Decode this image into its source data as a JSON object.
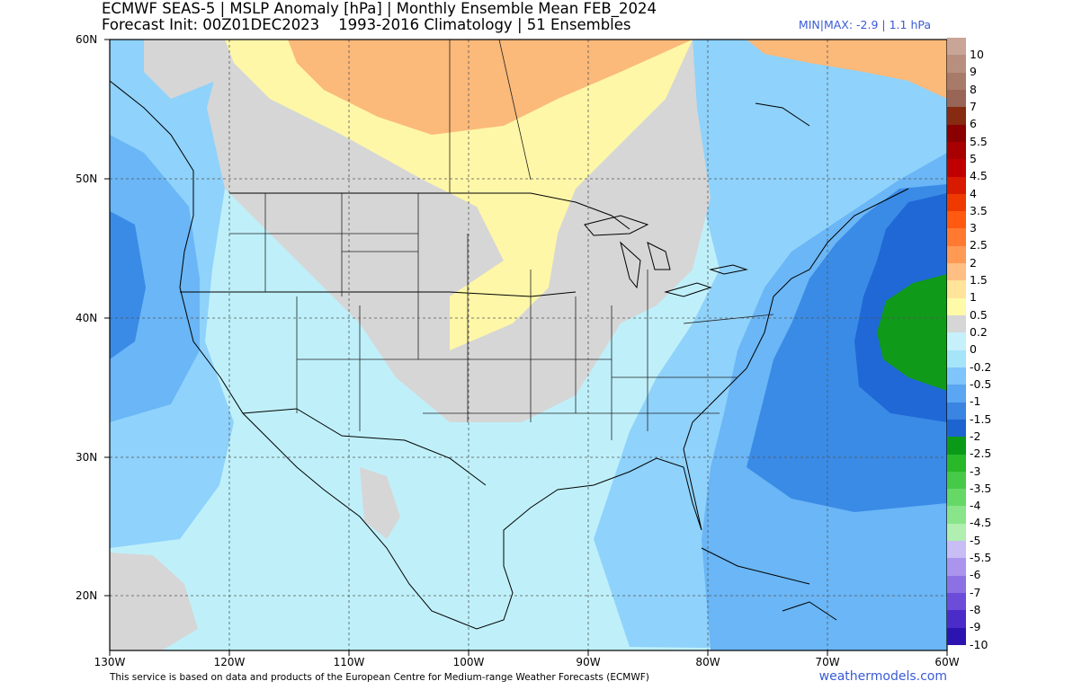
{
  "header": {
    "title_line1": "ECMWF SEAS-5 | MSLP Anomaly [hPa] | Monthly Ensemble Mean FEB_2024",
    "title_line2": "Forecast Init: 00Z01DEC2023    1993-2016 Climatology | 51 Ensembles",
    "minmax": "MIN|MAX: -2.9 | 1.1 hPa"
  },
  "axes": {
    "lat_labels": [
      "60N",
      "50N",
      "40N",
      "30N",
      "20N"
    ],
    "lon_labels": [
      "130W",
      "120W",
      "110W",
      "100W",
      "90W",
      "80W",
      "70W",
      "60W"
    ]
  },
  "colorbar": {
    "labels": [
      "10",
      "9",
      "8",
      "7",
      "6",
      "5.5",
      "5",
      "4.5",
      "4",
      "3.5",
      "3",
      "2.5",
      "2",
      "1.5",
      "1",
      "0.5",
      "0.2",
      "0",
      "-0.2",
      "-0.5",
      "-1",
      "-1.5",
      "-2",
      "-2.5",
      "-3",
      "-3.5",
      "-4",
      "-4.5",
      "-5",
      "-5.5",
      "-6",
      "-7",
      "-8",
      "-9",
      "-10"
    ],
    "colors": [
      "#c8a596",
      "#b88f7f",
      "#a87a6a",
      "#986557",
      "#862a12",
      "#8a0000",
      "#a80000",
      "#c00000",
      "#d81a00",
      "#ee3a00",
      "#ff5a10",
      "#ff7a30",
      "#ff9a55",
      "#ffbe84",
      "#ffe49a",
      "#fffaa8",
      "#d6d6d6",
      "#c6f0fa",
      "#a6e4fa",
      "#7fc4fa",
      "#5aa6f2",
      "#3a84e2",
      "#1e64d0",
      "#0a9a18",
      "#28b828",
      "#46c946",
      "#66d866",
      "#8ae48a",
      "#b0efb0",
      "#c8bdf4",
      "#aa94ee",
      "#8c70e4",
      "#6c4cd8",
      "#4c2cc8",
      "#2c14b0"
    ]
  },
  "footer": {
    "text": "This service is based on data and products of the European Centre for Medium-range Weather Forecasts (ECMWF)",
    "credit": "weathermodels.com"
  }
}
